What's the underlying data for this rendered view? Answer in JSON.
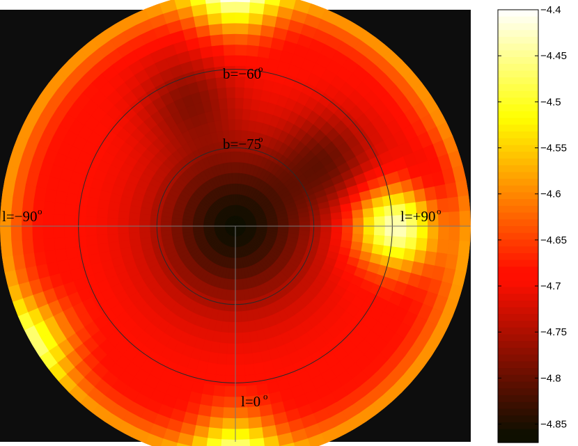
{
  "chart_data": {
    "type": "heatmap",
    "projection": "polar",
    "colormap": "hot",
    "background_color": "#0d0d0d",
    "colorbar": {
      "min": -4.87,
      "max": -4.4,
      "ticks": [
        "-4.4",
        "-4.45",
        "-4.5",
        "-4.55",
        "-4.6",
        "-4.65",
        "-4.7",
        "-4.75",
        "-4.8",
        "-4.85"
      ],
      "tick_values": [
        -4.4,
        -4.45,
        -4.5,
        -4.55,
        -4.6,
        -4.65,
        -4.7,
        -4.75,
        -4.8,
        -4.85
      ]
    },
    "field": {
      "outer_b": -45,
      "base_value": -4.69,
      "outer_edge_value": -4.57,
      "features": [
        {
          "kind": "pole_minimum",
          "l": 0,
          "b": -90,
          "value": -4.86
        },
        {
          "kind": "maximum",
          "l": -90,
          "b": -59,
          "value": -4.41
        },
        {
          "kind": "maximum",
          "l": 180,
          "b": -46,
          "value": -4.5
        },
        {
          "kind": "maximum",
          "l": 0,
          "b": -47,
          "value": -4.52
        },
        {
          "kind": "maximum",
          "l": 60,
          "b": -46,
          "value": -4.56
        },
        {
          "kind": "minimum",
          "l": -125,
          "b": -68,
          "value": -4.78
        },
        {
          "kind": "minimum",
          "l": 160,
          "b": -64,
          "value": -4.77
        },
        {
          "kind": "minimum",
          "l": -100,
          "b": -51,
          "value": -4.74
        }
      ]
    },
    "circles": [
      {
        "b": -60,
        "label": "b=−60",
        "sup": "o"
      },
      {
        "b": -75,
        "label": "b=−75",
        "sup": "o"
      }
    ],
    "lines": [
      {
        "l": -90,
        "label": "l=−90",
        "sup": "o"
      },
      {
        "l": 90,
        "label": "l=+90",
        "sup": "o"
      },
      {
        "l": 0,
        "label": "l=0",
        "sup": "o"
      }
    ]
  }
}
